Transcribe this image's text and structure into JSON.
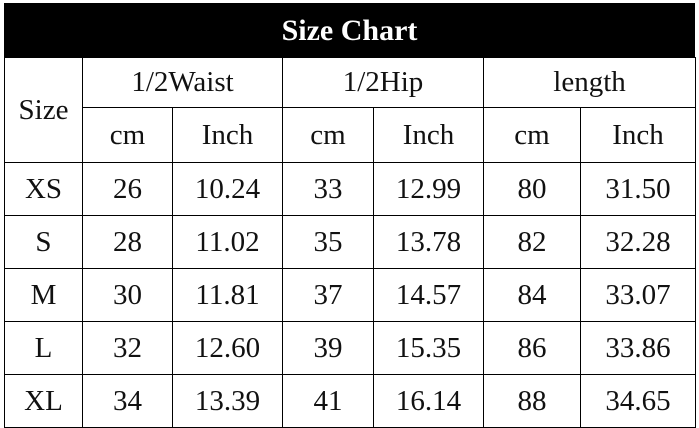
{
  "title": "Size Chart",
  "header": {
    "size": "Size",
    "groups": [
      "1/2Waist",
      "1/2Hip",
      "length"
    ],
    "units": [
      "cm",
      "Inch",
      "cm",
      "Inch",
      "cm",
      "Inch"
    ]
  },
  "rows": [
    {
      "size": "XS",
      "values": [
        "26",
        "10.24",
        "33",
        "12.99",
        "80",
        "31.50"
      ]
    },
    {
      "size": "S",
      "values": [
        "28",
        "11.02",
        "35",
        "13.78",
        "82",
        "32.28"
      ]
    },
    {
      "size": "M",
      "values": [
        "30",
        "11.81",
        "37",
        "14.57",
        "84",
        "33.07"
      ]
    },
    {
      "size": "L",
      "values": [
        "32",
        "12.60",
        "39",
        "15.35",
        "86",
        "33.86"
      ]
    },
    {
      "size": "XL",
      "values": [
        "34",
        "13.39",
        "41",
        "16.14",
        "88",
        "34.65"
      ]
    }
  ]
}
